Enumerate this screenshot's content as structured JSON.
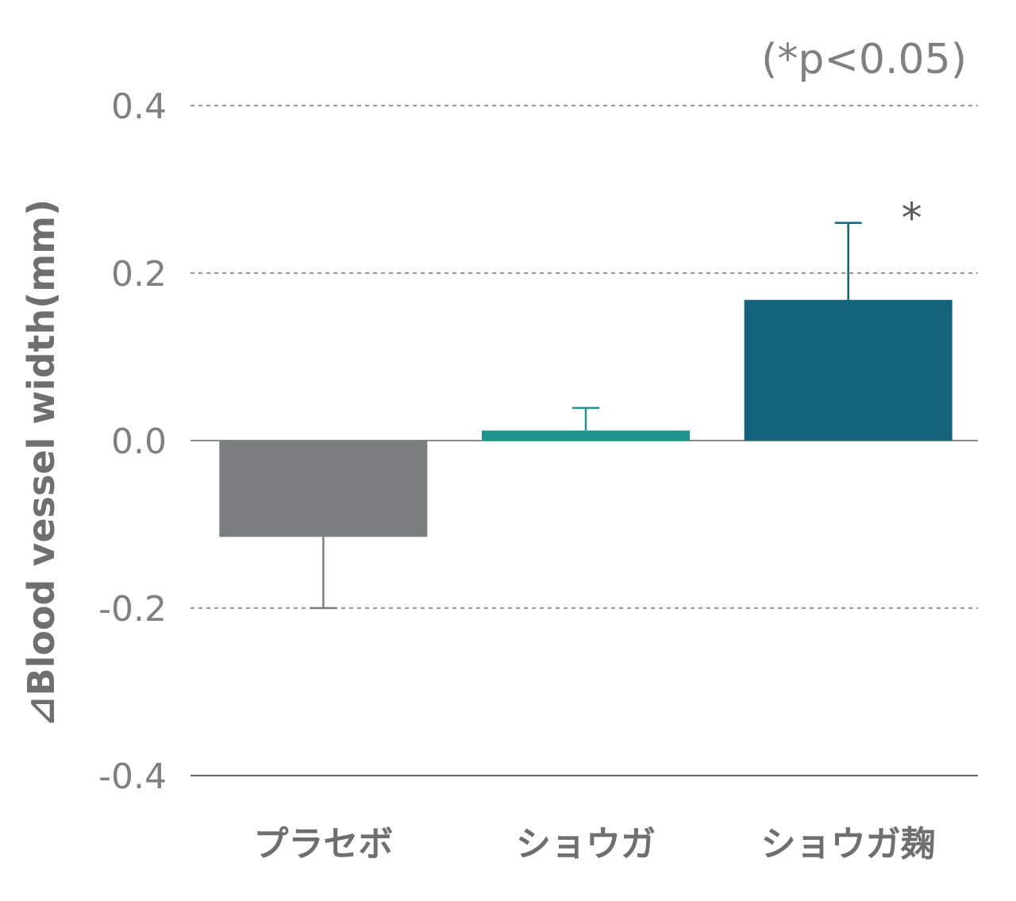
{
  "chart_data": {
    "type": "bar",
    "ylabel": "⊿Blood vessel width(mm)",
    "significance_note": "(*p<0.05)",
    "categories": [
      "プラセボ",
      "ショウガ",
      "ショウガ麹"
    ],
    "values": [
      -0.115,
      0.012,
      0.168
    ],
    "error_bars": [
      0.085,
      0.027,
      0.092
    ],
    "error_direction": [
      "down",
      "up",
      "up"
    ],
    "significance": [
      "",
      "",
      "*"
    ],
    "colors": [
      "#7b7e7f",
      "#1f9590",
      "#13637b"
    ],
    "ylim": [
      -0.4,
      0.4
    ],
    "yticks": [
      "0.4",
      "0.2",
      "0.0",
      "-0.2",
      "-0.4"
    ],
    "ytick_values": [
      0.4,
      0.2,
      0.0,
      -0.2,
      -0.4
    ],
    "grid": "dotted horizontal"
  }
}
